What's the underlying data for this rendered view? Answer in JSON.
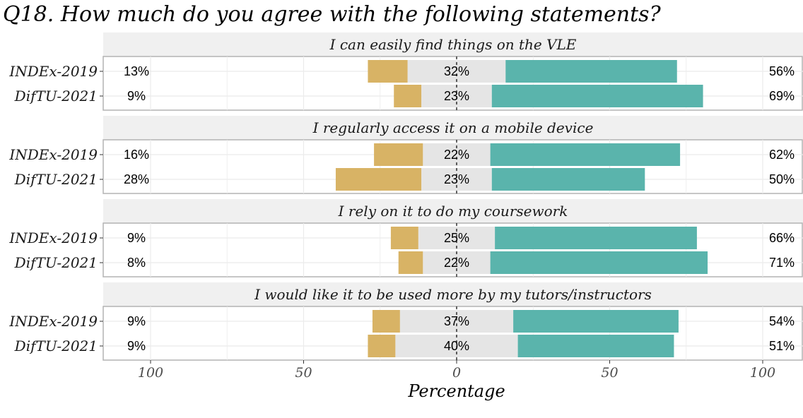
{
  "chart_data": {
    "type": "bar",
    "title": "Q18. How much do you agree with the following statements?",
    "xlabel": "Percentage",
    "xlim": [
      -100,
      100
    ],
    "x_ticks": [
      -100,
      -50,
      0,
      50,
      100
    ],
    "x_tick_labels": [
      "100",
      "50",
      "0",
      "50",
      "100"
    ],
    "colors": {
      "disagree": "#d8b365",
      "neutral": "#e5e5e5",
      "agree": "#5ab4ac"
    },
    "panels": [
      {
        "strip": "I can easily find things on the VLE",
        "rows": [
          {
            "category": "INDEx-2019",
            "disagree": 13,
            "neutral": 32,
            "agree": 56,
            "disagree_label": "13%",
            "neutral_label": "32%",
            "agree_label": "56%"
          },
          {
            "category": "DifTU-2021",
            "disagree": 9,
            "neutral": 23,
            "agree": 69,
            "disagree_label": "9%",
            "neutral_label": "23%",
            "agree_label": "69%"
          }
        ]
      },
      {
        "strip": "I regularly access it on a mobile device",
        "rows": [
          {
            "category": "INDEx-2019",
            "disagree": 16,
            "neutral": 22,
            "agree": 62,
            "disagree_label": "16%",
            "neutral_label": "22%",
            "agree_label": "62%"
          },
          {
            "category": "DifTU-2021",
            "disagree": 28,
            "neutral": 23,
            "agree": 50,
            "disagree_label": "28%",
            "neutral_label": "23%",
            "agree_label": "50%"
          }
        ]
      },
      {
        "strip": "I rely on it to do my coursework",
        "rows": [
          {
            "category": "INDEx-2019",
            "disagree": 9,
            "neutral": 25,
            "agree": 66,
            "disagree_label": "9%",
            "neutral_label": "25%",
            "agree_label": "66%"
          },
          {
            "category": "DifTU-2021",
            "disagree": 8,
            "neutral": 22,
            "agree": 71,
            "disagree_label": "8%",
            "neutral_label": "22%",
            "agree_label": "71%"
          }
        ]
      },
      {
        "strip": "I would like it to be used more by my tutors/instructors",
        "rows": [
          {
            "category": "INDEx-2019",
            "disagree": 9,
            "neutral": 37,
            "agree": 54,
            "disagree_label": "9%",
            "neutral_label": "37%",
            "agree_label": "54%"
          },
          {
            "category": "DifTU-2021",
            "disagree": 9,
            "neutral": 40,
            "agree": 51,
            "disagree_label": "9%",
            "neutral_label": "40%",
            "agree_label": "51%"
          }
        ]
      }
    ]
  }
}
